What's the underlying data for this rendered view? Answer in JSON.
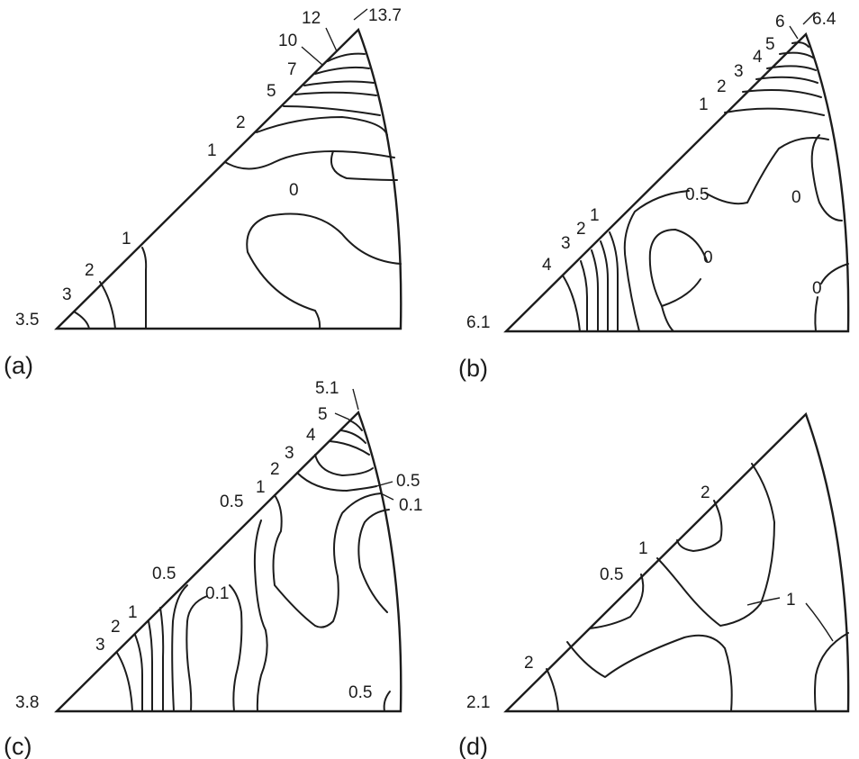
{
  "panels": {
    "a": {
      "tag": "(a)",
      "labels": [
        "13.7",
        "12",
        "10",
        "7",
        "5",
        "2",
        "1",
        "0",
        "1",
        "2",
        "3",
        "3.5"
      ]
    },
    "b": {
      "tag": "(b)",
      "labels": [
        "6.4",
        "6",
        "5",
        "4",
        "3",
        "2",
        "1",
        "0.5",
        "0",
        "0",
        "1",
        "2",
        "3",
        "4",
        "0",
        "6.1"
      ]
    },
    "c": {
      "tag": "(c)",
      "labels": [
        "5.1",
        "5",
        "4",
        "3",
        "2",
        "1",
        "0.5",
        "0.5",
        "0.1",
        "0.5",
        "0.1",
        "1",
        "2",
        "3",
        "0.5",
        "3.8"
      ]
    },
    "d": {
      "tag": "(d)",
      "labels": [
        "2",
        "1",
        "0.5",
        "1",
        "2",
        "2.1"
      ]
    }
  }
}
